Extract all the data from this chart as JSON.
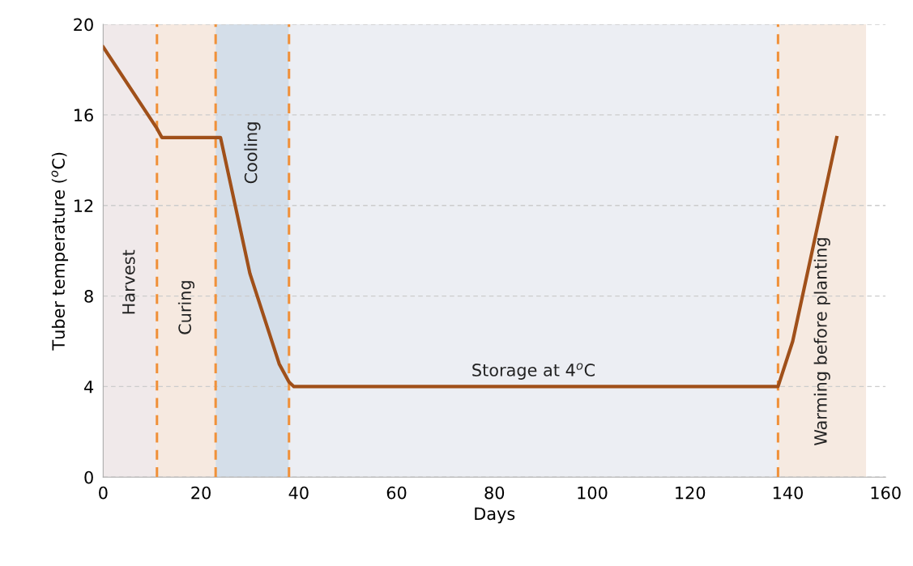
{
  "chart_data": {
    "type": "line",
    "xlabel": "Days",
    "ylabel": "Tuber temperature ($^{o}$C)",
    "x": [
      0,
      11,
      12,
      24,
      30,
      36,
      38,
      39,
      138,
      141,
      150
    ],
    "series": [
      {
        "color": "#a0501a",
        "values": [
          19,
          15.4,
          15,
          15,
          9,
          5,
          4.2,
          4,
          4,
          6,
          15
        ]
      }
    ],
    "xlim": [
      0,
      160
    ],
    "xticks": [
      0,
      20,
      40,
      60,
      80,
      100,
      120,
      140,
      160
    ],
    "ylim": [
      0,
      20
    ],
    "yticks": [
      0,
      4,
      8,
      12,
      16,
      20
    ],
    "grid": "y",
    "line_style": "solid",
    "marker": "none",
    "bands": [
      {
        "axis": "x",
        "from": 0,
        "to": 11,
        "color": "#f0e9ea",
        "label": "Harvest"
      },
      {
        "axis": "x",
        "from": 11,
        "to": 23,
        "color": "#f6e9e0",
        "label": "Curing"
      },
      {
        "axis": "x",
        "from": 23,
        "to": 38,
        "color": "#d4dee9",
        "label": "Cooling"
      },
      {
        "axis": "x",
        "from": 38,
        "to": 138,
        "color": "#eceef3",
        "label": "Storage at 4$^{o}$C"
      },
      {
        "axis": "x",
        "from": 138,
        "to": 156,
        "color": "#f6eae1",
        "label": "Warming before planting"
      }
    ],
    "ref_lines": [
      {
        "axis": "x",
        "value": 11,
        "color": "#f0913a",
        "line_style": "dashed"
      },
      {
        "axis": "x",
        "value": 23,
        "color": "#f0913a",
        "line_style": "dashed"
      },
      {
        "axis": "x",
        "value": 38,
        "color": "#f0913a",
        "line_style": "dashed"
      },
      {
        "axis": "x",
        "value": 138,
        "color": "#f0913a",
        "line_style": "dashed"
      }
    ]
  }
}
